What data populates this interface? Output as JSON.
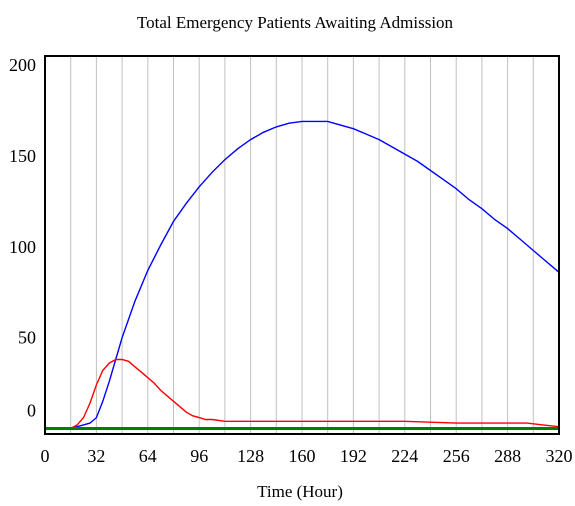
{
  "chart_data": {
    "type": "line",
    "title": "Total Emergency Patients Awaiting Admission",
    "xlabel": "Time (Hour)",
    "ylabel": "",
    "xlim": [
      0,
      320
    ],
    "ylim": [
      -3,
      205
    ],
    "x_ticks": [
      "0",
      "32",
      "64",
      "96",
      "128",
      "160",
      "192",
      "224",
      "256",
      "288",
      "320"
    ],
    "y_ticks": [
      {
        "value": 200,
        "label": "200"
      },
      {
        "value": 150,
        "label": "150"
      },
      {
        "value": 100,
        "label": "100"
      },
      {
        "value": 50,
        "label": "50"
      },
      {
        "value": 0,
        "label": "0"
      }
    ],
    "grid": {
      "vertical": true,
      "horizontal": false
    },
    "series": [
      {
        "color": "#0000ff",
        "x": [
          0,
          16,
          20,
          24,
          28,
          32,
          36,
          40,
          44,
          48,
          56,
          64,
          72,
          80,
          88,
          96,
          104,
          112,
          120,
          128,
          136,
          144,
          152,
          160,
          168,
          176,
          184,
          192,
          200,
          208,
          216,
          224,
          232,
          240,
          248,
          256,
          264,
          272,
          280,
          288,
          296,
          304,
          312,
          320
        ],
        "y": [
          0,
          0,
          1,
          2,
          3,
          6,
          15,
          26,
          38,
          50,
          70,
          87,
          101,
          114,
          124,
          133,
          141,
          148,
          154,
          159,
          163,
          166,
          168,
          169,
          169,
          169,
          167,
          165,
          162,
          159,
          155,
          151,
          147,
          142,
          137,
          132,
          126,
          121,
          115,
          110,
          104,
          98,
          92,
          86
        ]
      },
      {
        "color": "#ff0000",
        "x": [
          0,
          16,
          20,
          24,
          28,
          32,
          36,
          40,
          44,
          48,
          52,
          56,
          60,
          64,
          68,
          72,
          76,
          80,
          84,
          88,
          92,
          96,
          100,
          104,
          112,
          120,
          128,
          160,
          192,
          224,
          256,
          288,
          300,
          310,
          320
        ],
        "y": [
          0,
          0,
          2,
          6,
          14,
          24,
          32,
          36,
          38,
          38,
          37,
          34,
          31,
          28,
          25,
          21,
          18,
          15,
          12,
          9,
          7,
          6,
          5,
          5,
          4,
          4,
          4,
          4,
          4,
          4,
          3,
          3,
          3,
          2,
          1
        ]
      },
      {
        "color": "#008000",
        "x": [
          0,
          320
        ],
        "y": [
          0,
          0
        ]
      }
    ]
  }
}
